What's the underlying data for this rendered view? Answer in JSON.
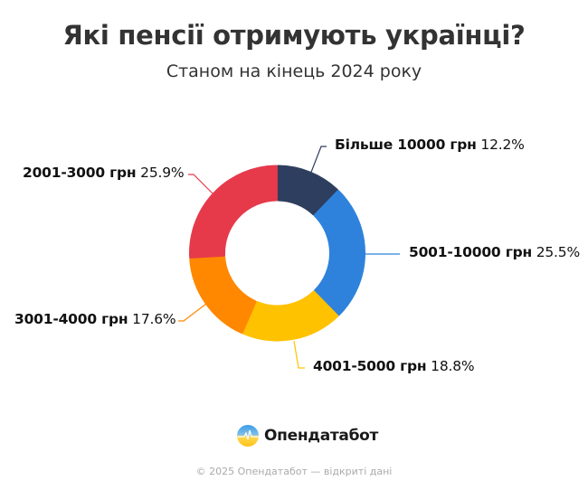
{
  "header": {
    "title": "Які пенсії отримують українці?",
    "subtitle": "Станом на кінець 2024 року"
  },
  "chart_data": {
    "type": "pie",
    "variant": "donut",
    "title": "Які пенсії отримують українці?",
    "subtitle": "Станом на кінець 2024 року",
    "categories": [
      "Більше 10000 грн",
      "5001-10000 грн",
      "4001-5000 грн",
      "3001-4000 грн",
      "2001-3000 грн"
    ],
    "values": [
      12.2,
      25.5,
      18.8,
      17.6,
      25.9
    ],
    "unit": "%",
    "colors": [
      "#2E3E5E",
      "#2E82DC",
      "#FFC200",
      "#FF8800",
      "#E63A4B"
    ],
    "start_angle_deg": 0,
    "direction": "clockwise",
    "legend": "none (callout labels)"
  },
  "segments": [
    {
      "label": "Більше 10000 грн",
      "pct": "12.2%",
      "value": 12.2,
      "color": "#2E3E5E"
    },
    {
      "label": "5001-10000 грн",
      "pct": "25.5%",
      "value": 25.5,
      "color": "#2E82DC"
    },
    {
      "label": "4001-5000 грн",
      "pct": "18.8%",
      "value": 18.8,
      "color": "#FFC200"
    },
    {
      "label": "3001-4000 грн",
      "pct": "17.6%",
      "value": 17.6,
      "color": "#FF8800"
    },
    {
      "label": "2001-3000 грн",
      "pct": "25.9%",
      "value": 25.9,
      "color": "#E63A4B"
    }
  ],
  "brand": {
    "name": "Опендатабот",
    "logo_icon": "opendatabot-logo-icon",
    "logo_colors": {
      "top": "#3A9BE8",
      "bottom": "#FFCC33"
    }
  },
  "footer": {
    "text": "© 2025 Опендатабот — відкриті дані"
  }
}
